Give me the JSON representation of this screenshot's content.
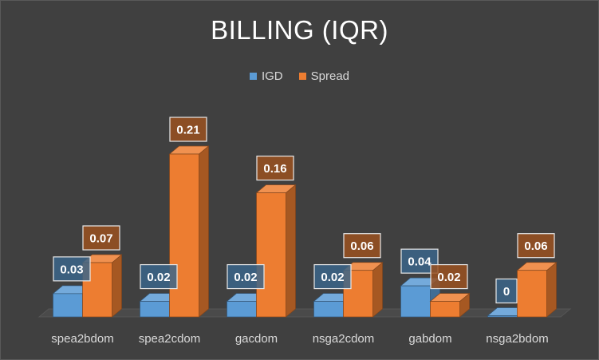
{
  "chart_data": {
    "type": "bar",
    "title": "BILLING (IQR)",
    "categories": [
      "spea2bdom",
      "spea2cdom",
      "gacdom",
      "nsga2cdom",
      "gabdom",
      "nsga2bdom"
    ],
    "series": [
      {
        "name": "IGD",
        "values": [
          0.03,
          0.02,
          0.02,
          0.02,
          0.04,
          0
        ],
        "labels": [
          "0.03",
          "0.02",
          "0.02",
          "0.02",
          "0.04",
          "0"
        ],
        "color": "#5B9BD5"
      },
      {
        "name": "Spread",
        "values": [
          0.07,
          0.21,
          0.16,
          0.06,
          0.02,
          0.06
        ],
        "labels": [
          "0.07",
          "0.21",
          "0.16",
          "0.06",
          "0.02",
          "0.06"
        ],
        "color": "#ED7D31"
      }
    ],
    "ylim": [
      0,
      0.21
    ],
    "grid": false,
    "legend_position": "top",
    "style": "3d-column",
    "background_color": "#404040"
  }
}
